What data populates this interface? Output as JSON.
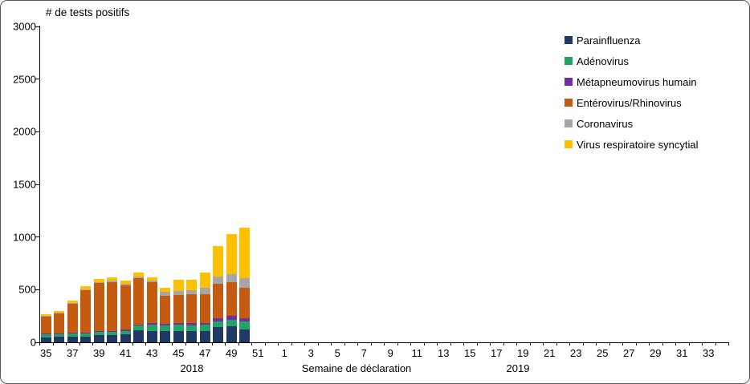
{
  "chart_data": {
    "type": "bar",
    "stacked": true,
    "title": "# de tests positifs",
    "grid": false,
    "legend_position": "top-right",
    "ylim": [
      0,
      3000
    ],
    "y_ticks": [
      0,
      500,
      1000,
      1500,
      2000,
      2500,
      3000
    ],
    "x_axis": {
      "label": "Semaine de déclaration",
      "groups": [
        {
          "year": "2018",
          "first_week": 35,
          "last_week": 52
        },
        {
          "year": "2019",
          "first_week": 1,
          "last_week": 34
        }
      ],
      "tick_label_values": [
        35,
        37,
        39,
        41,
        43,
        45,
        47,
        49,
        51,
        1,
        3,
        5,
        7,
        9,
        11,
        13,
        15,
        17,
        19,
        21,
        23,
        25,
        27,
        29,
        31,
        33
      ]
    },
    "categories": [
      35,
      36,
      37,
      38,
      39,
      40,
      41,
      42,
      43,
      44,
      45,
      46,
      47,
      48,
      49,
      50
    ],
    "categories_year": "2018",
    "series": [
      {
        "name": "Parainfluenza",
        "color": "#1F3864",
        "values": [
          45,
          55,
          55,
          55,
          65,
          70,
          75,
          115,
          110,
          105,
          110,
          105,
          110,
          145,
          150,
          120
        ]
      },
      {
        "name": "Adénovirus",
        "color": "#21A366",
        "values": [
          30,
          25,
          30,
          35,
          35,
          30,
          35,
          45,
          60,
          55,
          55,
          55,
          55,
          55,
          60,
          75
        ]
      },
      {
        "name": "Métapneumovirus humain",
        "color": "#7030A0",
        "values": [
          5,
          5,
          5,
          5,
          10,
          10,
          10,
          10,
          10,
          15,
          15,
          20,
          20,
          25,
          40,
          30
        ]
      },
      {
        "name": "Entérovirus/Rhinovirus",
        "color": "#C55A11",
        "values": [
          170,
          190,
          280,
          400,
          450,
          460,
          420,
          440,
          390,
          270,
          270,
          275,
          270,
          330,
          320,
          295
        ]
      },
      {
        "name": "Coronavirus",
        "color": "#A6A6A6",
        "values": [
          5,
          5,
          5,
          10,
          10,
          15,
          15,
          15,
          20,
          35,
          40,
          40,
          60,
          70,
          80,
          90
        ]
      },
      {
        "name": "Virus respiratoire syncytial",
        "color": "#FFC000",
        "values": [
          15,
          20,
          20,
          25,
          30,
          35,
          35,
          35,
          30,
          40,
          105,
          100,
          150,
          285,
          380,
          480
        ]
      }
    ],
    "bar_totals": [
      270,
      300,
      395,
      530,
      600,
      620,
      590,
      660,
      620,
      520,
      595,
      595,
      665,
      910,
      1030,
      1090
    ]
  }
}
